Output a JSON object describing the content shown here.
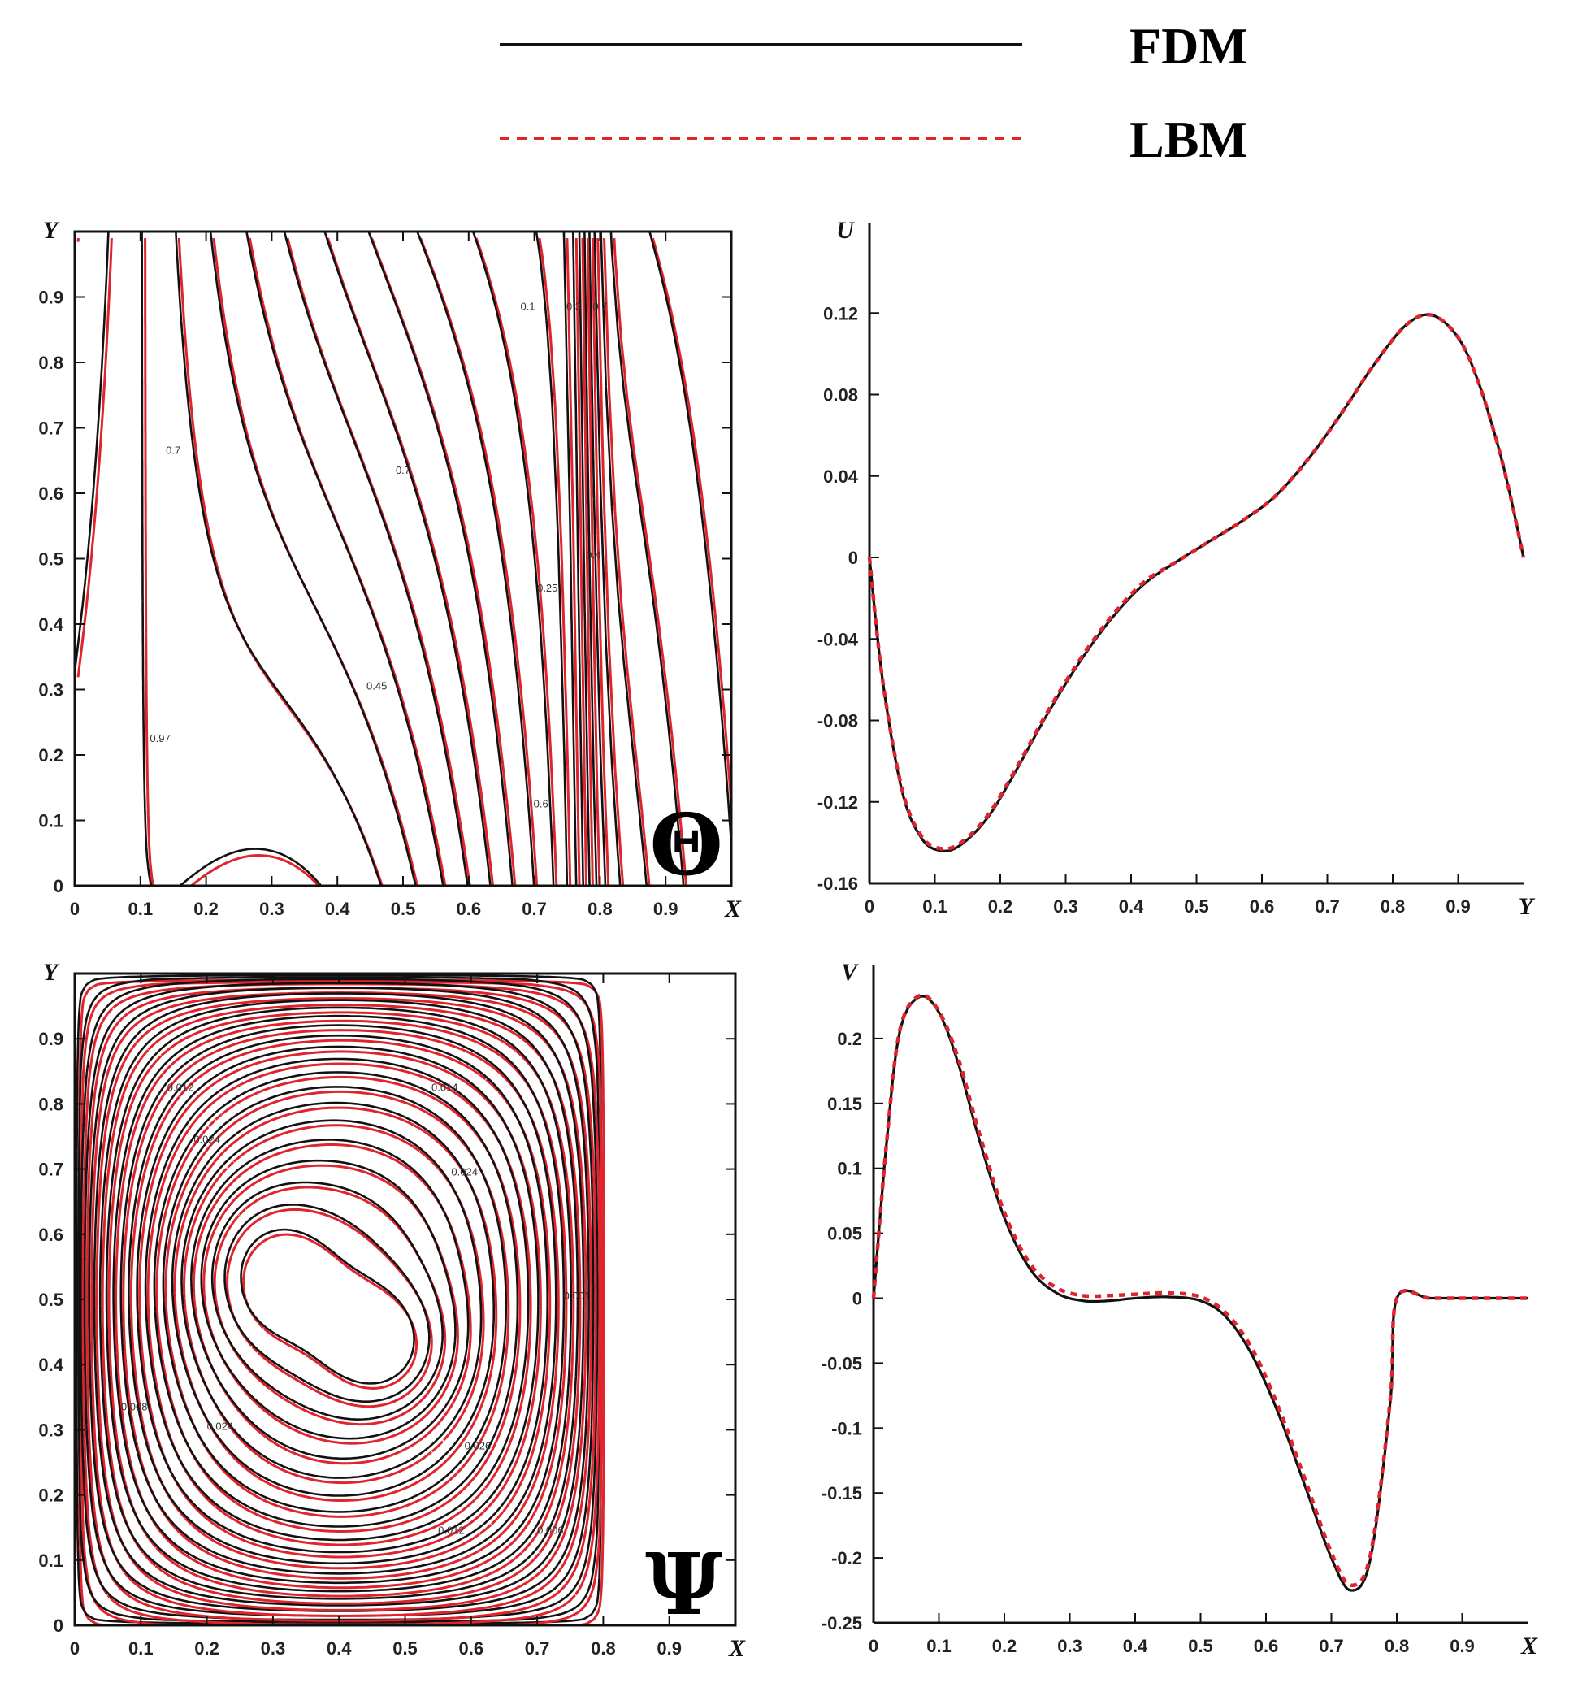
{
  "legend": [
    {
      "label": "FDM",
      "color": "#111111",
      "style": "solid"
    },
    {
      "label": "LBM",
      "color": "#e0242e",
      "style": "dashed"
    }
  ],
  "chart_data": [
    {
      "type": "contour",
      "symbol": "Θ",
      "xlabel": "X",
      "ylabel": "Y",
      "xlim": [
        0,
        1
      ],
      "ylim": [
        0,
        1
      ],
      "xticks": [
        "0",
        "0.1",
        "0.2",
        "0.3",
        "0.4",
        "0.5",
        "0.6",
        "0.7",
        "0.8",
        "0.9"
      ],
      "yticks": [
        "0",
        "0.1",
        "0.2",
        "0.3",
        "0.4",
        "0.5",
        "0.6",
        "0.7",
        "0.8",
        "0.9"
      ],
      "contour_labels": [
        {
          "text": "0.1",
          "x": 0.69,
          "y": 0.88
        },
        {
          "text": "0.3",
          "x": 0.76,
          "y": 0.88
        },
        {
          "text": "0.7",
          "x": 0.8,
          "y": 0.88
        },
        {
          "text": "0.7",
          "x": 0.15,
          "y": 0.66
        },
        {
          "text": "0.7",
          "x": 0.5,
          "y": 0.63
        },
        {
          "text": "0.45",
          "x": 0.46,
          "y": 0.3
        },
        {
          "text": "0.97",
          "x": 0.13,
          "y": 0.22
        },
        {
          "text": "0.25",
          "x": 0.72,
          "y": 0.45
        },
        {
          "text": "0.4",
          "x": 0.79,
          "y": 0.5
        },
        {
          "text": "0.6",
          "x": 0.71,
          "y": 0.12
        }
      ]
    },
    {
      "type": "line",
      "xlabel": "Y",
      "ylabel": "U",
      "xlim": [
        0,
        1
      ],
      "ylim": [
        -0.16,
        0.16
      ],
      "xticks": [
        "0",
        "0.1",
        "0.2",
        "0.3",
        "0.4",
        "0.5",
        "0.6",
        "0.7",
        "0.8",
        "0.9"
      ],
      "yticks": [
        "-0.16",
        "-0.12",
        "-0.08",
        "-0.04",
        "0",
        "0.04",
        "0.08",
        "0.12"
      ],
      "ytick_values": [
        -0.16,
        -0.12,
        -0.08,
        -0.04,
        0,
        0.04,
        0.08,
        0.12
      ],
      "series": [
        {
          "name": "FDM",
          "x": [
            0,
            0.02,
            0.05,
            0.08,
            0.11,
            0.14,
            0.18,
            0.22,
            0.27,
            0.32,
            0.37,
            0.42,
            0.47,
            0.52,
            0.57,
            0.62,
            0.67,
            0.72,
            0.77,
            0.82,
            0.86,
            0.9,
            0.93,
            0.96,
            0.98,
            1.0
          ],
          "y": [
            0,
            -0.06,
            -0.115,
            -0.138,
            -0.144,
            -0.141,
            -0.128,
            -0.107,
            -0.078,
            -0.052,
            -0.03,
            -0.013,
            -0.002,
            0.008,
            0.018,
            0.03,
            0.048,
            0.07,
            0.094,
            0.114,
            0.119,
            0.108,
            0.087,
            0.056,
            0.03,
            0.0
          ]
        },
        {
          "name": "LBM",
          "x": [
            0,
            0.02,
            0.05,
            0.08,
            0.11,
            0.14,
            0.18,
            0.22,
            0.27,
            0.32,
            0.37,
            0.42,
            0.47,
            0.52,
            0.57,
            0.62,
            0.67,
            0.72,
            0.77,
            0.82,
            0.86,
            0.9,
            0.93,
            0.96,
            0.98,
            1.0
          ],
          "y": [
            0,
            -0.06,
            -0.114,
            -0.137,
            -0.143,
            -0.14,
            -0.127,
            -0.106,
            -0.077,
            -0.051,
            -0.029,
            -0.012,
            -0.002,
            0.008,
            0.018,
            0.03,
            0.048,
            0.07,
            0.094,
            0.114,
            0.119,
            0.108,
            0.087,
            0.056,
            0.03,
            0.0
          ]
        }
      ]
    },
    {
      "type": "contour",
      "symbol": "Ψ",
      "xlabel": "X",
      "ylabel": "Y",
      "xlim": [
        0,
        1
      ],
      "ylim": [
        0,
        1
      ],
      "xticks": [
        "0",
        "0.1",
        "0.2",
        "0.3",
        "0.4",
        "0.5",
        "0.6",
        "0.7",
        "0.8",
        "0.9"
      ],
      "yticks": [
        "0",
        "0.1",
        "0.2",
        "0.3",
        "0.4",
        "0.5",
        "0.6",
        "0.7",
        "0.8",
        "0.9"
      ],
      "contour_labels": [
        {
          "text": "0.014",
          "x": 0.56,
          "y": 0.82
        },
        {
          "text": "0.024",
          "x": 0.59,
          "y": 0.69
        },
        {
          "text": "0.012",
          "x": 0.16,
          "y": 0.82
        },
        {
          "text": "0.024",
          "x": 0.2,
          "y": 0.74
        },
        {
          "text": "0.024",
          "x": 0.22,
          "y": 0.3
        },
        {
          "text": "0.026",
          "x": 0.61,
          "y": 0.27
        },
        {
          "text": "0.012",
          "x": 0.57,
          "y": 0.14
        },
        {
          "text": "0.006",
          "x": 0.72,
          "y": 0.14
        },
        {
          "text": "0.008",
          "x": 0.09,
          "y": 0.33
        },
        {
          "text": "0.001",
          "x": 0.76,
          "y": 0.5
        }
      ]
    },
    {
      "type": "line",
      "xlabel": "X",
      "ylabel": "V",
      "xlim": [
        0,
        1
      ],
      "ylim": [
        -0.25,
        0.25
      ],
      "xticks": [
        "0",
        "0.1",
        "0.2",
        "0.3",
        "0.4",
        "0.5",
        "0.6",
        "0.7",
        "0.8",
        "0.9"
      ],
      "yticks": [
        "-0.25",
        "-0.2",
        "-0.15",
        "-0.1",
        "-0.05",
        "0",
        "0.05",
        "0.1",
        "0.15",
        "0.2"
      ],
      "ytick_values": [
        -0.25,
        -0.2,
        -0.15,
        -0.1,
        -0.05,
        0,
        0.05,
        0.1,
        0.15,
        0.2
      ],
      "series": [
        {
          "name": "FDM",
          "x": [
            0,
            0.02,
            0.04,
            0.07,
            0.1,
            0.13,
            0.16,
            0.2,
            0.24,
            0.28,
            0.32,
            0.36,
            0.4,
            0.45,
            0.5,
            0.54,
            0.58,
            0.62,
            0.66,
            0.7,
            0.73,
            0.76,
            0.79,
            0.8,
            0.85,
            0.9,
            0.95,
            1.0
          ],
          "y": [
            0,
            0.12,
            0.205,
            0.232,
            0.22,
            0.18,
            0.125,
            0.062,
            0.022,
            0.004,
            -0.002,
            -0.002,
            0.0,
            0.001,
            -0.002,
            -0.015,
            -0.045,
            -0.09,
            -0.145,
            -0.2,
            -0.225,
            -0.2,
            -0.08,
            0,
            0,
            0,
            0,
            0
          ]
        },
        {
          "name": "LBM",
          "x": [
            0,
            0.02,
            0.04,
            0.07,
            0.1,
            0.13,
            0.16,
            0.2,
            0.24,
            0.28,
            0.32,
            0.36,
            0.4,
            0.45,
            0.5,
            0.54,
            0.58,
            0.62,
            0.66,
            0.7,
            0.73,
            0.76,
            0.79,
            0.8,
            0.85,
            0.9,
            0.95,
            1.0
          ],
          "y": [
            0,
            0.12,
            0.206,
            0.233,
            0.221,
            0.184,
            0.13,
            0.066,
            0.026,
            0.008,
            0.002,
            0.002,
            0.003,
            0.004,
            0.001,
            -0.012,
            -0.04,
            -0.085,
            -0.14,
            -0.196,
            -0.221,
            -0.197,
            -0.078,
            0,
            0,
            0,
            0,
            0
          ]
        }
      ]
    }
  ]
}
